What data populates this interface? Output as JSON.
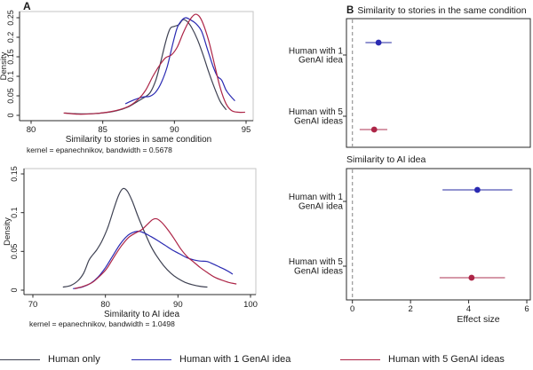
{
  "panels": {
    "a_label": "A",
    "b_label": "B"
  },
  "colors": {
    "human_only": "#3e4152",
    "one_idea": "#2a2ab2",
    "five_ideas": "#ad2547",
    "one_idea_ci": "#5254b4",
    "five_ideas_ci": "#bd5c76",
    "frame": "#2a2a2a",
    "frame_light": "#c6c6c6",
    "zero_line": "#979797",
    "text": "#1a1a1a"
  },
  "legend": {
    "items": [
      {
        "label": "Human only",
        "color_key": "human_only"
      },
      {
        "label": "Human with 1 GenAI idea",
        "color_key": "one_idea"
      },
      {
        "label": "Human with 5 GenAI ideas",
        "color_key": "five_ideas"
      }
    ]
  },
  "chart_data": [
    {
      "type": "line",
      "kind": "density",
      "xlabel": "Similarity to stories in same condition",
      "ylabel": "Density",
      "note": "kernel = epanechnikov, bandwidth = 0.5678",
      "xlim": [
        80,
        95
      ],
      "ylim": [
        0,
        0.25
      ],
      "xticks": [
        80,
        85,
        90,
        95
      ],
      "yticks": [
        0,
        0.05,
        0.1,
        0.15,
        0.2,
        0.25
      ],
      "ytick_labels": [
        "0",
        "0.05",
        "0.1",
        "0.15",
        "0.2",
        "0.25"
      ],
      "series": [
        {
          "name": "Human only",
          "color_key": "human_only",
          "points": [
            [
              82.4,
              0.006
            ],
            [
              83.2,
              0.004
            ],
            [
              84.2,
              0.004
            ],
            [
              85.2,
              0.007
            ],
            [
              86.0,
              0.012
            ],
            [
              86.8,
              0.022
            ],
            [
              87.4,
              0.035
            ],
            [
              87.9,
              0.046
            ],
            [
              88.3,
              0.058
            ],
            [
              88.7,
              0.09
            ],
            [
              89.0,
              0.13
            ],
            [
              89.4,
              0.19
            ],
            [
              89.7,
              0.222
            ],
            [
              90.0,
              0.228
            ],
            [
              90.3,
              0.232
            ],
            [
              90.6,
              0.245
            ],
            [
              90.9,
              0.24
            ],
            [
              91.2,
              0.225
            ],
            [
              91.6,
              0.195
            ],
            [
              92.0,
              0.155
            ],
            [
              92.4,
              0.11
            ],
            [
              92.8,
              0.07
            ],
            [
              93.2,
              0.035
            ],
            [
              93.6,
              0.015
            ]
          ]
        },
        {
          "name": "Human with 1 GenAI idea",
          "color_key": "one_idea",
          "points": [
            [
              86.6,
              0.03
            ],
            [
              87.2,
              0.04
            ],
            [
              87.8,
              0.047
            ],
            [
              88.3,
              0.049
            ],
            [
              88.7,
              0.06
            ],
            [
              89.1,
              0.085
            ],
            [
              89.5,
              0.125
            ],
            [
              89.9,
              0.185
            ],
            [
              90.2,
              0.225
            ],
            [
              90.5,
              0.243
            ],
            [
              90.8,
              0.25
            ],
            [
              91.1,
              0.245
            ],
            [
              91.5,
              0.235
            ],
            [
              91.9,
              0.215
            ],
            [
              92.3,
              0.17
            ],
            [
              92.7,
              0.125
            ],
            [
              93.0,
              0.1
            ],
            [
              93.3,
              0.09
            ],
            [
              93.6,
              0.065
            ],
            [
              93.9,
              0.05
            ],
            [
              94.2,
              0.038
            ]
          ]
        },
        {
          "name": "Human with 5 GenAI ideas",
          "color_key": "five_ideas",
          "points": [
            [
              82.3,
              0.006
            ],
            [
              83.3,
              0.003
            ],
            [
              84.3,
              0.004
            ],
            [
              85.3,
              0.008
            ],
            [
              86.2,
              0.015
            ],
            [
              86.9,
              0.025
            ],
            [
              87.5,
              0.042
            ],
            [
              88.0,
              0.065
            ],
            [
              88.5,
              0.1
            ],
            [
              89.0,
              0.13
            ],
            [
              89.4,
              0.148
            ],
            [
              89.8,
              0.155
            ],
            [
              90.2,
              0.175
            ],
            [
              90.6,
              0.21
            ],
            [
              91.0,
              0.24
            ],
            [
              91.4,
              0.258
            ],
            [
              91.7,
              0.255
            ],
            [
              92.0,
              0.235
            ],
            [
              92.4,
              0.19
            ],
            [
              92.8,
              0.13
            ],
            [
              93.2,
              0.07
            ],
            [
              93.6,
              0.03
            ],
            [
              94.0,
              0.012
            ],
            [
              94.5,
              0.008
            ],
            [
              94.9,
              0.008
            ]
          ]
        }
      ]
    },
    {
      "type": "line",
      "kind": "density",
      "xlabel": "Similarity to AI idea",
      "ylabel": "Density",
      "note": "kernel = epanechnikov, bandwidth = 1.0498",
      "xlim": [
        70,
        100
      ],
      "ylim": [
        0,
        0.15
      ],
      "xticks": [
        70,
        80,
        90,
        100
      ],
      "yticks": [
        0,
        0.05,
        0.1,
        0.15
      ],
      "ytick_labels": [
        "0",
        "0.05",
        "0.1",
        "0.15"
      ],
      "series": [
        {
          "name": "Human only",
          "color_key": "human_only",
          "points": [
            [
              74.2,
              0.004
            ],
            [
              75.2,
              0.006
            ],
            [
              76.2,
              0.012
            ],
            [
              77.0,
              0.022
            ],
            [
              77.7,
              0.038
            ],
            [
              78.2,
              0.045
            ],
            [
              78.8,
              0.052
            ],
            [
              79.5,
              0.063
            ],
            [
              80.3,
              0.08
            ],
            [
              81.1,
              0.103
            ],
            [
              81.8,
              0.122
            ],
            [
              82.4,
              0.131
            ],
            [
              83.0,
              0.128
            ],
            [
              83.7,
              0.115
            ],
            [
              84.5,
              0.095
            ],
            [
              85.3,
              0.077
            ],
            [
              86.2,
              0.058
            ],
            [
              87.0,
              0.045
            ],
            [
              88.0,
              0.032
            ],
            [
              89.0,
              0.022
            ],
            [
              90.0,
              0.015
            ],
            [
              91.0,
              0.01
            ],
            [
              92.0,
              0.007
            ],
            [
              93.0,
              0.005
            ],
            [
              94.0,
              0.004
            ]
          ]
        },
        {
          "name": "Human with 1 GenAI idea",
          "color_key": "one_idea",
          "points": [
            [
              75.6,
              0.002
            ],
            [
              76.8,
              0.004
            ],
            [
              78.0,
              0.009
            ],
            [
              79.0,
              0.017
            ],
            [
              80.0,
              0.029
            ],
            [
              81.0,
              0.044
            ],
            [
              82.0,
              0.059
            ],
            [
              83.0,
              0.07
            ],
            [
              83.8,
              0.0745
            ],
            [
              84.6,
              0.076
            ],
            [
              85.4,
              0.0735
            ],
            [
              86.3,
              0.069
            ],
            [
              87.2,
              0.064
            ],
            [
              88.2,
              0.058
            ],
            [
              89.2,
              0.052
            ],
            [
              90.2,
              0.047
            ],
            [
              91.2,
              0.042
            ],
            [
              92.2,
              0.039
            ],
            [
              93.2,
              0.0375
            ],
            [
              94.0,
              0.037
            ],
            [
              94.8,
              0.034
            ],
            [
              95.7,
              0.03
            ],
            [
              96.6,
              0.026
            ],
            [
              97.5,
              0.021
            ]
          ]
        },
        {
          "name": "Human with 5 GenAI ideas",
          "color_key": "five_ideas",
          "points": [
            [
              75.8,
              0.002
            ],
            [
              77.0,
              0.005
            ],
            [
              78.2,
              0.01
            ],
            [
              79.2,
              0.018
            ],
            [
              80.2,
              0.028
            ],
            [
              81.2,
              0.043
            ],
            [
              82.2,
              0.057
            ],
            [
              83.2,
              0.068
            ],
            [
              84.2,
              0.074
            ],
            [
              85.0,
              0.078
            ],
            [
              85.8,
              0.085
            ],
            [
              86.5,
              0.091
            ],
            [
              87.1,
              0.092
            ],
            [
              87.8,
              0.087
            ],
            [
              88.6,
              0.078
            ],
            [
              89.5,
              0.066
            ],
            [
              90.4,
              0.053
            ],
            [
              91.3,
              0.043
            ],
            [
              92.2,
              0.036
            ],
            [
              93.1,
              0.029
            ],
            [
              94.0,
              0.023
            ],
            [
              95.0,
              0.017
            ],
            [
              96.0,
              0.013
            ],
            [
              97.0,
              0.01
            ],
            [
              98.0,
              0.008
            ]
          ]
        }
      ]
    },
    {
      "type": "scatter",
      "kind": "forest",
      "title": "Similarity to stories in the same condition",
      "xlim": [
        -0.2,
        6.15
      ],
      "zero_line": 0,
      "rows": [
        {
          "label_lines": [
            "Human with 1",
            "GenAI idea"
          ],
          "estimate": 0.9,
          "ci_low": 0.45,
          "ci_high": 1.35,
          "marker_key": "one_idea",
          "ci_key": "one_idea_ci"
        },
        {
          "label_lines": [
            "Human with 5",
            "GenAI ideas"
          ],
          "estimate": 0.75,
          "ci_low": 0.25,
          "ci_high": 1.2,
          "marker_key": "five_ideas",
          "ci_key": "five_ideas_ci"
        }
      ]
    },
    {
      "type": "scatter",
      "kind": "forest",
      "title": "Similarity to AI idea",
      "xlabel": "Effect size",
      "xlim": [
        -0.2,
        6.15
      ],
      "xticks": [
        0,
        2,
        4,
        6
      ],
      "zero_line": 0,
      "rows": [
        {
          "label_lines": [
            "Human with 1",
            "GenAI idea"
          ],
          "estimate": 4.3,
          "ci_low": 3.1,
          "ci_high": 5.5,
          "marker_key": "one_idea",
          "ci_key": "one_idea_ci"
        },
        {
          "label_lines": [
            "Human with 5",
            "GenAI ideas"
          ],
          "estimate": 4.1,
          "ci_low": 3.0,
          "ci_high": 5.25,
          "marker_key": "five_ideas",
          "ci_key": "five_ideas_ci"
        }
      ]
    }
  ]
}
